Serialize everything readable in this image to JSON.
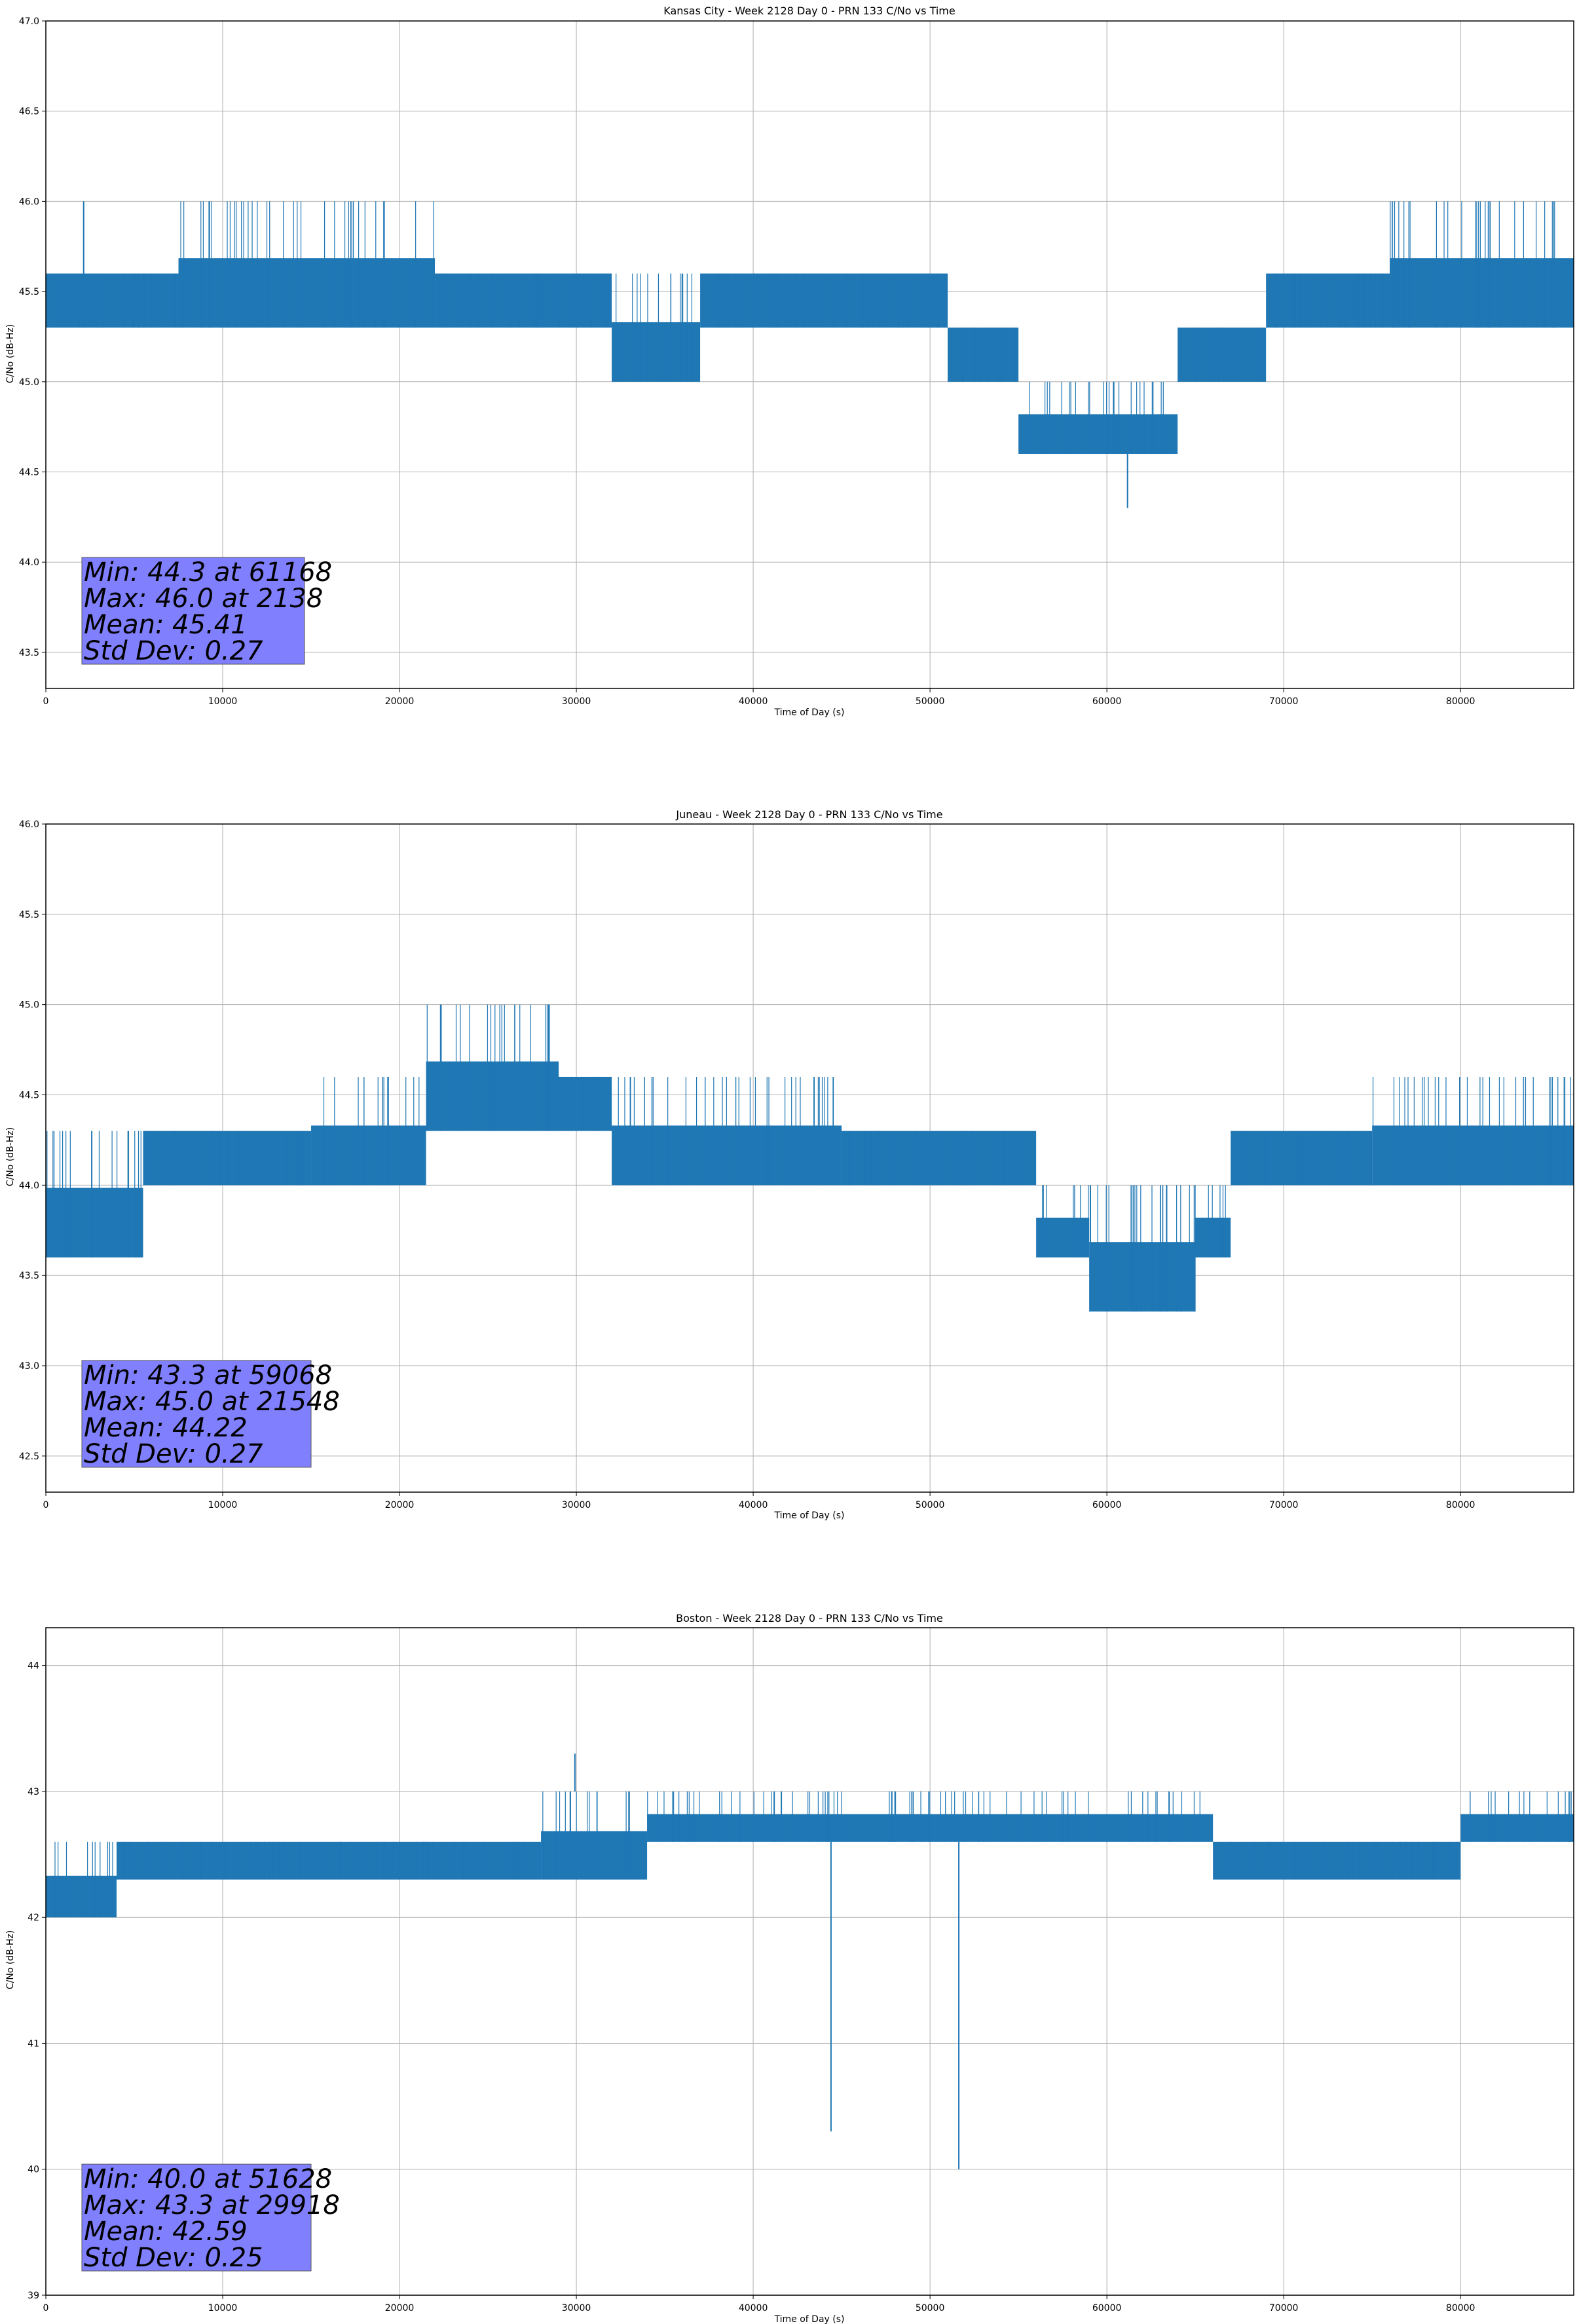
{
  "chart_data": [
    {
      "type": "line",
      "title": "Kansas City - Week 2128 Day 0 - PRN 133 C/No vs Time",
      "xlabel": "Time of Day (s)",
      "ylabel": "C/No (dB-Hz)",
      "xlim": [
        0,
        86400
      ],
      "ylim": [
        43.3,
        47.0
      ],
      "xticks": [
        0,
        10000,
        20000,
        30000,
        40000,
        50000,
        60000,
        70000,
        80000
      ],
      "yticks": [
        43.5,
        44.0,
        44.5,
        45.0,
        45.5,
        46.0,
        46.5,
        47.0
      ],
      "ytick_labels": [
        "43.5",
        "44.0",
        "44.5",
        "45.0",
        "45.5",
        "46.0",
        "46.5",
        "47.0"
      ],
      "grid": true,
      "color": "#1f77b4",
      "series": [
        {
          "segments": [
            {
              "x0": 0,
              "x1": 7500,
              "y0": 45.3,
              "y1": 45.6
            },
            {
              "x0": 7500,
              "x1": 22000,
              "y0": 45.3,
              "y1": 46.0
            },
            {
              "x0": 22000,
              "x1": 32000,
              "y0": 45.3,
              "y1": 45.6
            },
            {
              "x0": 32000,
              "x1": 37000,
              "y0": 45.0,
              "y1": 45.6
            },
            {
              "x0": 37000,
              "x1": 51000,
              "y0": 45.3,
              "y1": 45.6
            },
            {
              "x0": 51000,
              "x1": 55000,
              "y0": 45.0,
              "y1": 45.3
            },
            {
              "x0": 55000,
              "x1": 64000,
              "y0": 44.6,
              "y1": 45.0
            },
            {
              "x0": 64000,
              "x1": 69000,
              "y0": 45.0,
              "y1": 45.3
            },
            {
              "x0": 69000,
              "x1": 76000,
              "y0": 45.3,
              "y1": 45.6
            },
            {
              "x0": 76000,
              "x1": 86400,
              "y0": 45.3,
              "y1": 46.0
            }
          ],
          "spikes": [
            {
              "x": 61168,
              "y": 44.3
            },
            {
              "x": 2138,
              "y": 46.0
            }
          ]
        }
      ],
      "stats": [
        "Min: 44.3 at 61168",
        "Max: 46.0 at 2138",
        "Mean: 45.41",
        "Std Dev: 0.27"
      ]
    },
    {
      "type": "line",
      "title": "Juneau - Week 2128 Day 0 - PRN 133 C/No vs Time",
      "xlabel": "Time of Day (s)",
      "ylabel": "C/No (dB-Hz)",
      "xlim": [
        0,
        86400
      ],
      "ylim": [
        42.3,
        46.0
      ],
      "xticks": [
        0,
        10000,
        20000,
        30000,
        40000,
        50000,
        60000,
        70000,
        80000
      ],
      "yticks": [
        42.5,
        43.0,
        43.5,
        44.0,
        44.5,
        45.0,
        45.5,
        46.0
      ],
      "ytick_labels": [
        "42.5",
        "43.0",
        "43.5",
        "44.0",
        "44.5",
        "45.0",
        "45.5",
        "46.0"
      ],
      "grid": true,
      "color": "#1f77b4",
      "series": [
        {
          "segments": [
            {
              "x0": 0,
              "x1": 5500,
              "y0": 43.6,
              "y1": 44.3
            },
            {
              "x0": 5500,
              "x1": 15000,
              "y0": 44.0,
              "y1": 44.3
            },
            {
              "x0": 15000,
              "x1": 21500,
              "y0": 44.0,
              "y1": 44.6
            },
            {
              "x0": 21500,
              "x1": 29000,
              "y0": 44.3,
              "y1": 45.0
            },
            {
              "x0": 29000,
              "x1": 32000,
              "y0": 44.3,
              "y1": 44.6
            },
            {
              "x0": 32000,
              "x1": 45000,
              "y0": 44.0,
              "y1": 44.6
            },
            {
              "x0": 45000,
              "x1": 56000,
              "y0": 44.0,
              "y1": 44.3
            },
            {
              "x0": 56000,
              "x1": 59000,
              "y0": 43.6,
              "y1": 44.0
            },
            {
              "x0": 59000,
              "x1": 65000,
              "y0": 43.3,
              "y1": 44.0
            },
            {
              "x0": 65000,
              "x1": 67000,
              "y0": 43.6,
              "y1": 44.0
            },
            {
              "x0": 67000,
              "x1": 75000,
              "y0": 44.0,
              "y1": 44.3
            },
            {
              "x0": 75000,
              "x1": 86400,
              "y0": 44.0,
              "y1": 44.6
            }
          ],
          "spikes": [
            {
              "x": 59068,
              "y": 43.3
            },
            {
              "x": 21548,
              "y": 45.0
            }
          ]
        }
      ],
      "stats": [
        "Min: 43.3 at 59068",
        "Max: 45.0 at 21548",
        "Mean: 44.22",
        "Std Dev: 0.27"
      ]
    },
    {
      "type": "line",
      "title": "Boston - Week 2128 Day 0 - PRN 133 C/No vs Time",
      "xlabel": "Time of Day (s)",
      "ylabel": "C/No (dB-Hz)",
      "xlim": [
        0,
        86400
      ],
      "ylim": [
        39.0,
        44.3
      ],
      "xticks": [
        0,
        10000,
        20000,
        30000,
        40000,
        50000,
        60000,
        70000,
        80000
      ],
      "yticks": [
        39,
        40,
        41,
        42,
        43,
        44
      ],
      "ytick_labels": [
        "39",
        "40",
        "41",
        "42",
        "43",
        "44"
      ],
      "grid": true,
      "color": "#1f77b4",
      "series": [
        {
          "segments": [
            {
              "x0": 0,
              "x1": 4000,
              "y0": 42.0,
              "y1": 42.6
            },
            {
              "x0": 4000,
              "x1": 28000,
              "y0": 42.3,
              "y1": 42.6
            },
            {
              "x0": 28000,
              "x1": 34000,
              "y0": 42.3,
              "y1": 43.0
            },
            {
              "x0": 34000,
              "x1": 48000,
              "y0": 42.6,
              "y1": 43.0
            },
            {
              "x0": 48000,
              "x1": 66000,
              "y0": 42.6,
              "y1": 43.0
            },
            {
              "x0": 66000,
              "x1": 80000,
              "y0": 42.3,
              "y1": 42.6
            },
            {
              "x0": 80000,
              "x1": 86400,
              "y0": 42.6,
              "y1": 43.0
            }
          ],
          "spikes": [
            {
              "x": 44400,
              "y": 40.3
            },
            {
              "x": 51628,
              "y": 40.0
            },
            {
              "x": 29918,
              "y": 43.3
            }
          ]
        }
      ],
      "stats": [
        "Min: 40.0 at 51628",
        "Max: 43.3 at 29918",
        "Mean: 42.59",
        "Std Dev: 0.25"
      ]
    }
  ]
}
